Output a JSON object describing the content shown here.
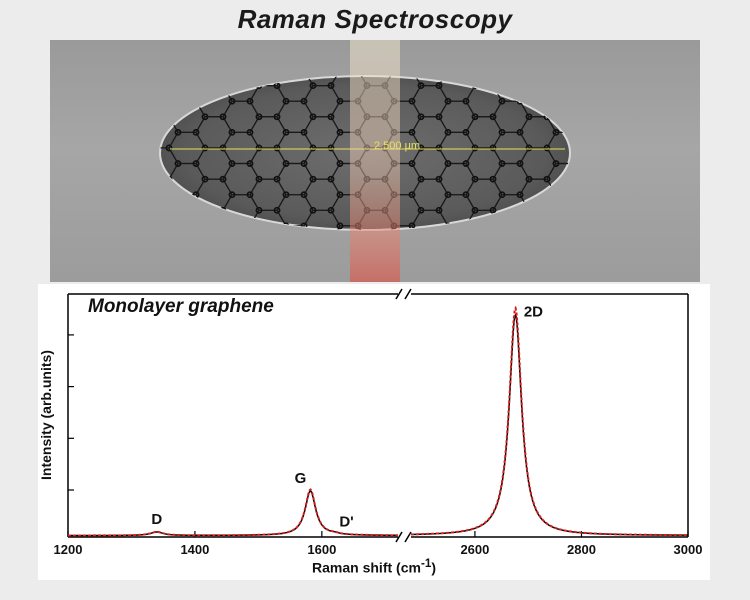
{
  "title": "Raman Spectroscopy",
  "sem_image": {
    "scale_bar_label": "2.500 µm"
  },
  "chart_data": {
    "type": "line",
    "title": "Monolayer graphene",
    "xlabel": "Raman shift (cm",
    "xlabel_superscript": "-1",
    "xlabel_suffix": ")",
    "ylabel": "Intensity (arb.units)",
    "x_segments": [
      {
        "xlim": [
          1200,
          1720
        ],
        "ticks": [
          1200,
          1400,
          1600
        ]
      },
      {
        "xlim": [
          2480,
          3000
        ],
        "ticks": [
          2600,
          2800,
          3000
        ]
      }
    ],
    "axis_break": true,
    "ylim": [
      0,
      1.0
    ],
    "peaks": [
      {
        "label": "D",
        "position": 1340,
        "intensity": 0.015,
        "width": 12
      },
      {
        "label": "G",
        "position": 1582,
        "intensity": 0.19,
        "width": 10
      },
      {
        "label": "D'",
        "position": 1620,
        "intensity": 0.004,
        "width": 8
      },
      {
        "label": "2D",
        "position": 2676,
        "intensity": 0.94,
        "width": 14
      }
    ],
    "series": [
      {
        "color": "#000000"
      },
      {
        "color": "#d62020",
        "dashed": true
      }
    ],
    "grid": false
  }
}
